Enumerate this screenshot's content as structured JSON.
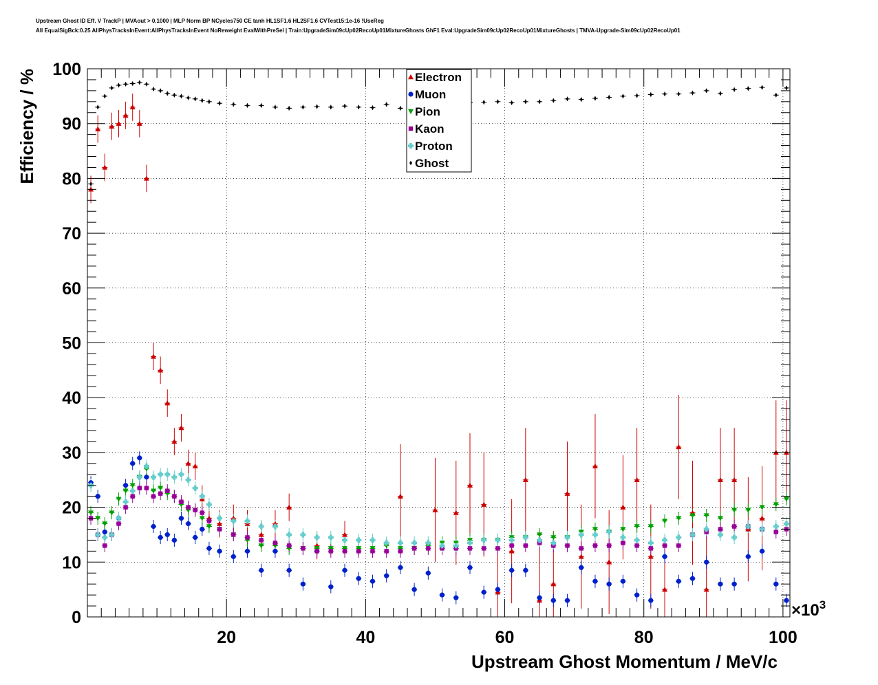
{
  "chart_data": {
    "type": "scatter",
    "title_lines": [
      "Upstream Ghost ID Eff. V TrackP | MVAout > 0.1000 | MLP Norm BP NCycles750 CE tanh HL1SF1.6 HL2SF1.6 CVTest15:1e-16 !UseReg",
      "All EqualSigBck:0.25 AllPhysTracksInEvent:AllPhysTracksInEvent NoReweight EvalWithPreSel | Train:UpgradeSim09cUp02RecoUp01MixtureGhosts GhF1 Eval:UpgradeSim09cUp02RecoUp01MixtureGhosts | TMVA-Upgrade-Sim09cUp02RecoUp01"
    ],
    "xlabel": "Upstream Ghost Momentum / MeV/c",
    "ylabel": "Efficiency / %",
    "x_multiplier": "×10",
    "x_multiplier_exp": "3",
    "xlim": [
      0,
      101
    ],
    "ylim": [
      0,
      100
    ],
    "x_ticks": [
      20,
      40,
      60,
      80,
      100
    ],
    "y_ticks": [
      0,
      10,
      20,
      30,
      40,
      50,
      60,
      70,
      80,
      90,
      100
    ],
    "grid": true,
    "legend_position": "top-center",
    "series": [
      {
        "name": "Electron",
        "color": "#cc0000",
        "marker": "triangle-up",
        "x": [
          0.5,
          1.5,
          2.5,
          3.5,
          4.5,
          5.5,
          6.5,
          7.5,
          8.5,
          9.5,
          10.5,
          11.5,
          12.5,
          13.5,
          14.5,
          15.5,
          16.5,
          17.5,
          19,
          21,
          23,
          25,
          27,
          29,
          33,
          37,
          45,
          50,
          53,
          55,
          57,
          59,
          61,
          63,
          65,
          67,
          69,
          71,
          73,
          75,
          77,
          79,
          81,
          83,
          85,
          87,
          89,
          91,
          93,
          95,
          97,
          99,
          100.5
        ],
        "y": [
          78,
          89,
          82,
          89.5,
          90,
          91.5,
          93,
          90,
          80,
          47.5,
          45,
          39,
          32,
          34.5,
          28,
          27.5,
          21.5,
          18,
          17,
          18,
          17,
          15,
          17,
          20,
          13,
          15,
          22,
          19.5,
          19,
          24,
          20.5,
          4.5,
          12,
          25,
          3,
          6,
          22.5,
          11,
          27.5,
          10,
          20,
          25,
          11,
          5,
          31,
          19,
          5,
          25,
          25,
          16,
          18,
          30,
          30
        ]
      },
      {
        "name": "Muon",
        "color": "#0020cc",
        "marker": "circle",
        "x": [
          0.5,
          1.5,
          2.5,
          3.5,
          4.5,
          5.5,
          6.5,
          7.5,
          8.5,
          9.5,
          10.5,
          11.5,
          12.5,
          13.5,
          14.5,
          15.5,
          16.5,
          17.5,
          19,
          21,
          23,
          25,
          27,
          29,
          31,
          33,
          35,
          37,
          39,
          41,
          43,
          45,
          47,
          49,
          51,
          53,
          55,
          57,
          59,
          61,
          63,
          65,
          67,
          69,
          71,
          73,
          75,
          77,
          79,
          81,
          83,
          85,
          87,
          89,
          91,
          93,
          95,
          97,
          99,
          100.5
        ],
        "y": [
          24.5,
          22,
          15.5,
          15,
          18,
          24,
          28,
          29,
          25.5,
          16.5,
          14.5,
          15,
          14,
          18,
          17,
          14.5,
          16,
          12.5,
          12,
          11,
          12,
          8.5,
          12,
          8.5,
          6,
          12,
          5.5,
          8.5,
          7,
          6.5,
          7.5,
          9,
          5,
          8,
          4,
          3.5,
          9,
          4.5,
          5,
          8.5,
          8.5,
          3.5,
          3,
          3,
          9,
          6.5,
          6,
          6.5,
          4,
          3,
          11,
          6.5,
          7,
          10,
          6,
          6,
          11,
          12,
          6,
          3
        ]
      },
      {
        "name": "Pion",
        "color": "#00a000",
        "marker": "triangle-down",
        "x": [
          0.5,
          1.5,
          2.5,
          3.5,
          4.5,
          5.5,
          6.5,
          7.5,
          8.5,
          9.5,
          10.5,
          11.5,
          12.5,
          13.5,
          14.5,
          15.5,
          16.5,
          17.5,
          19,
          21,
          23,
          25,
          27,
          29,
          31,
          33,
          35,
          37,
          39,
          41,
          43,
          45,
          47,
          49,
          51,
          53,
          55,
          57,
          59,
          61,
          63,
          65,
          67,
          69,
          71,
          73,
          75,
          77,
          79,
          81,
          83,
          85,
          87,
          89,
          91,
          93,
          95,
          97,
          99,
          100.5
        ],
        "y": [
          19,
          18,
          17,
          19,
          21.5,
          23,
          24,
          25.5,
          27,
          23,
          23.5,
          22.5,
          22,
          20.5,
          19.5,
          19.5,
          18,
          16.5,
          16,
          15,
          14,
          13,
          13,
          12.5,
          12.5,
          12.5,
          12.5,
          12.5,
          12.5,
          12.5,
          13,
          12.5,
          12.5,
          13,
          13.5,
          13.5,
          14,
          14,
          14,
          14.5,
          14.5,
          15,
          14.5,
          14.5,
          15.5,
          16,
          15.5,
          16,
          16.5,
          16.5,
          17.5,
          18,
          18.5,
          18.5,
          18,
          19.5,
          19.5,
          20,
          20.5,
          21.5
        ]
      },
      {
        "name": "Kaon",
        "color": "#990099",
        "marker": "square",
        "x": [
          0.5,
          1.5,
          2.5,
          3.5,
          4.5,
          5.5,
          6.5,
          7.5,
          8.5,
          9.5,
          10.5,
          11.5,
          12.5,
          13.5,
          14.5,
          15.5,
          16.5,
          17.5,
          19,
          21,
          23,
          25,
          27,
          29,
          31,
          33,
          35,
          37,
          39,
          41,
          43,
          45,
          47,
          49,
          51,
          53,
          55,
          57,
          59,
          61,
          63,
          65,
          67,
          69,
          71,
          73,
          75,
          77,
          79,
          81,
          83,
          85,
          87,
          89,
          91,
          93,
          95,
          97,
          99,
          100.5
        ],
        "y": [
          18,
          15,
          13,
          15,
          17,
          20,
          22,
          23.5,
          23.5,
          22,
          22.5,
          23,
          22,
          21,
          20,
          19.5,
          19,
          17.5,
          16,
          15,
          14.5,
          14,
          13.5,
          13,
          12.5,
          12,
          12,
          12,
          12,
          12,
          12,
          12,
          12.5,
          12.5,
          12.5,
          12.5,
          12.5,
          12.5,
          12.5,
          13,
          13,
          13.5,
          13,
          13,
          12.5,
          13,
          13,
          13.5,
          13,
          12.5,
          13,
          13,
          15,
          15.5,
          16,
          16.5,
          16.5,
          16,
          15.5,
          16
        ]
      },
      {
        "name": "Proton",
        "color": "#66cccc",
        "marker": "cross",
        "x": [
          0.5,
          1.5,
          2.5,
          3.5,
          4.5,
          5.5,
          6.5,
          7.5,
          8.5,
          9.5,
          10.5,
          11.5,
          12.5,
          13.5,
          14.5,
          15.5,
          16.5,
          17.5,
          19,
          21,
          23,
          25,
          27,
          29,
          31,
          33,
          35,
          37,
          39,
          41,
          43,
          45,
          47,
          49,
          51,
          53,
          55,
          57,
          59,
          61,
          63,
          65,
          67,
          69,
          71,
          73,
          75,
          77,
          79,
          81,
          83,
          85,
          87,
          89,
          91,
          93,
          95,
          97,
          99,
          100.5
        ],
        "y": [
          24,
          15,
          14.5,
          15,
          18,
          21,
          23,
          25.5,
          27.5,
          25.5,
          26,
          26,
          25.5,
          26,
          25,
          23.5,
          22,
          20.5,
          18,
          17.5,
          17.5,
          16.5,
          16.5,
          15,
          15,
          14.5,
          14.5,
          14,
          14,
          14,
          13.5,
          13.5,
          13.5,
          13.5,
          13,
          13,
          13.5,
          14,
          14,
          14,
          14.5,
          14,
          13.5,
          14.5,
          15,
          15,
          15.5,
          14.5,
          14,
          13.5,
          14,
          14.5,
          15,
          16,
          15,
          14.5,
          16.5,
          16,
          16.5,
          17
        ]
      },
      {
        "name": "Ghost",
        "color": "#000000",
        "marker": "diamond",
        "x": [
          0.5,
          1.5,
          2.5,
          3.5,
          4.5,
          5.5,
          6.5,
          7.5,
          8.5,
          9.5,
          10.5,
          11.5,
          12.5,
          13.5,
          14.5,
          15.5,
          16.5,
          17.5,
          19,
          21,
          23,
          25,
          27,
          29,
          31,
          33,
          35,
          37,
          39,
          41,
          43,
          45,
          47,
          49,
          51,
          53,
          55,
          57,
          59,
          61,
          63,
          65,
          67,
          69,
          71,
          73,
          75,
          77,
          79,
          81,
          83,
          85,
          87,
          89,
          91,
          93,
          95,
          97,
          99,
          100.5
        ],
        "y": [
          79,
          93,
          95,
          96.5,
          97,
          97.2,
          97.3,
          97.5,
          97.2,
          96.3,
          96,
          95.5,
          95.2,
          95,
          94.7,
          94.5,
          94.2,
          94,
          93.7,
          93.5,
          93.3,
          93.3,
          93,
          92.8,
          93,
          93.1,
          93,
          93.2,
          93,
          92.9,
          93.5,
          92.8,
          93.3,
          93.5,
          93.4,
          93.6,
          93.8,
          93.9,
          94,
          93.8,
          94,
          94,
          94.2,
          94.5,
          94.4,
          94.6,
          94.8,
          95,
          95.1,
          95.3,
          95.4,
          95.4,
          95.6,
          96,
          95.5,
          96.2,
          96.4,
          96.6,
          95.2,
          96.5
        ]
      }
    ]
  }
}
